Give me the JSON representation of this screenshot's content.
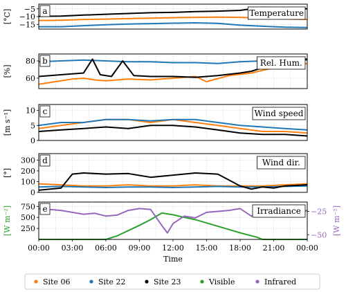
{
  "chart_data": {
    "type": "line",
    "layout": "5 stacked panels sharing a time axis",
    "xlabel": "Time",
    "x_ticks": [
      "00:00",
      "03:00",
      "06:00",
      "09:00",
      "12:00",
      "15:00",
      "18:00",
      "21:00",
      "00:00"
    ],
    "xlim_hours": [
      0,
      24
    ],
    "grid": true,
    "legend_position": "bottom",
    "legend": [
      {
        "name": "Site 06",
        "color": "#ff7f0e"
      },
      {
        "name": "Site 22",
        "color": "#1f77b4"
      },
      {
        "name": "Site 23",
        "color": "#000000"
      },
      {
        "name": "Visible",
        "color": "#2ca02c"
      },
      {
        "name": "Infrared",
        "color": "#9467bd"
      }
    ],
    "panels": [
      {
        "letter": "a",
        "title": "Temperature",
        "ylabel": "[°C]",
        "ylim": [
          -18,
          -2
        ],
        "yticks": [
          -15,
          -10,
          -5
        ],
        "series": [
          {
            "name": "Site 06",
            "color": "#ff7f0e",
            "x": [
              0,
              2,
              4,
              6,
              8,
              10,
              12,
              14,
              16,
              18,
              20,
              22,
              24
            ],
            "y": [
              -12.5,
              -12.3,
              -11.8,
              -11.6,
              -11.3,
              -11,
              -10.7,
              -10.5,
              -10.3,
              -10.5,
              -11,
              -11.5,
              -11.8
            ]
          },
          {
            "name": "Site 22",
            "color": "#1f77b4",
            "x": [
              0,
              2,
              4,
              6,
              8,
              10,
              12,
              14,
              16,
              18,
              20,
              22,
              24
            ],
            "y": [
              -16.5,
              -16.5,
              -15.8,
              -15.2,
              -14.8,
              -14.5,
              -14.2,
              -14,
              -14.3,
              -15.5,
              -16.2,
              -16.8,
              -17
            ]
          },
          {
            "name": "Site 23",
            "color": "#000000",
            "x": [
              0,
              2,
              4,
              6,
              8,
              10,
              12,
              14,
              16,
              18,
              19,
              20,
              22,
              24
            ],
            "y": [
              -9.8,
              -9.7,
              -9,
              -8.5,
              -8,
              -7.5,
              -7.3,
              -6.8,
              -6.5,
              -6,
              -5,
              -4,
              -4.5,
              -5
            ]
          }
        ]
      },
      {
        "letter": "b",
        "title": "Rel. Hum.",
        "ylabel": "[%]",
        "ylim": [
          48,
          88
        ],
        "yticks": [
          60,
          80
        ],
        "series": [
          {
            "name": "Site 06",
            "color": "#ff7f0e",
            "x": [
              0,
              1,
              2,
              3,
              4,
              5,
              6,
              8,
              10,
              12,
              14,
              15,
              17,
              19,
              21,
              22,
              24
            ],
            "y": [
              53,
              55,
              57,
              59,
              60,
              58,
              57,
              59,
              58,
              60,
              62,
              56,
              63,
              66,
              72,
              75,
              77
            ]
          },
          {
            "name": "Site 22",
            "color": "#1f77b4",
            "x": [
              0,
              2,
              4,
              6,
              8,
              10,
              12,
              14,
              16,
              18,
              20,
              22,
              24
            ],
            "y": [
              79,
              80,
              81,
              80,
              79,
              79,
              78,
              78,
              77,
              79,
              80,
              81,
              81
            ]
          },
          {
            "name": "Site 23",
            "color": "#000000",
            "x": [
              0,
              2,
              4,
              4.8,
              5.5,
              6.5,
              7.5,
              8.5,
              10,
              12,
              14,
              16,
              18,
              19,
              20,
              21,
              22,
              24
            ],
            "y": [
              62,
              64,
              66,
              82,
              64,
              62,
              80,
              63,
              62,
              62,
              61,
              63,
              66,
              68,
              72,
              80,
              83,
              82
            ]
          }
        ]
      },
      {
        "letter": "c",
        "title": "Wind speed",
        "ylabel": "[m s⁻¹]",
        "ylim": [
          0,
          12
        ],
        "yticks": [
          0,
          5,
          10
        ],
        "series": [
          {
            "name": "Site 06",
            "color": "#ff7f0e",
            "x": [
              0,
              2,
              4,
              6,
              8,
              10,
              12,
              14,
              16,
              18,
              20,
              22,
              24
            ],
            "y": [
              4,
              5,
              6,
              7,
              7,
              6,
              7,
              6,
              5,
              4,
              3,
              3,
              2.5
            ]
          },
          {
            "name": "Site 22",
            "color": "#1f77b4",
            "x": [
              0,
              2,
              4,
              6,
              8,
              10,
              12,
              14,
              16,
              18,
              20,
              22,
              24
            ],
            "y": [
              5,
              6,
              6,
              7,
              7,
              6.5,
              7,
              7,
              6,
              5,
              4.5,
              4,
              3.5
            ]
          },
          {
            "name": "Site 23",
            "color": "#000000",
            "x": [
              0,
              2,
              4,
              6,
              8,
              10,
              12,
              14,
              16,
              18,
              20,
              22,
              24
            ],
            "y": [
              3,
              3.5,
              4,
              4.5,
              4,
              5,
              5,
              4.5,
              3.5,
              2.5,
              2,
              2,
              1.5
            ]
          }
        ]
      },
      {
        "letter": "d",
        "title": "Wind dir.",
        "ylabel": "[°]",
        "ylim": [
          0,
          360
        ],
        "yticks": [
          0,
          100,
          200,
          300
        ],
        "series": [
          {
            "name": "Site 06",
            "color": "#ff7f0e",
            "x": [
              0,
              2,
              4,
              6,
              8,
              10,
              12,
              14,
              16,
              18,
              20,
              22,
              24
            ],
            "y": [
              80,
              70,
              60,
              60,
              70,
              60,
              60,
              70,
              60,
              60,
              60,
              70,
              80
            ]
          },
          {
            "name": "Site 22",
            "color": "#1f77b4",
            "x": [
              0,
              2,
              4,
              6,
              8,
              10,
              12,
              14,
              16,
              18,
              20,
              22,
              24
            ],
            "y": [
              50,
              55,
              50,
              45,
              50,
              50,
              45,
              50,
              55,
              50,
              50,
              55,
              60
            ]
          },
          {
            "name": "Site 23",
            "color": "#000000",
            "x": [
              0,
              2,
              3,
              4,
              6,
              8,
              10,
              12,
              14,
              16,
              18,
              19,
              20,
              21,
              22,
              24
            ],
            "y": [
              20,
              40,
              170,
              180,
              170,
              175,
              140,
              160,
              180,
              170,
              60,
              30,
              50,
              40,
              60,
              70
            ]
          }
        ]
      },
      {
        "letter": "e",
        "title": "Irradiance",
        "ylabel": "[W m⁻²]",
        "ylim": [
          0,
          850
        ],
        "yticks": [
          250,
          500,
          750
        ],
        "ylabel_right": "[W m⁻²]",
        "ylim_right": [
          -55,
          -15
        ],
        "yticks_right": [
          -50,
          -25
        ],
        "series": [
          {
            "name": "Visible",
            "color": "#2ca02c",
            "axis": "left",
            "x": [
              0,
              6,
              7,
              8,
              9,
              10,
              11,
              12,
              13,
              14,
              16,
              18,
              19.5,
              20,
              24
            ],
            "y": [
              0,
              0,
              80,
              200,
              320,
              450,
              600,
              560,
              500,
              450,
              300,
              150,
              50,
              0,
              0
            ]
          },
          {
            "name": "Infrared",
            "color": "#9467bd",
            "axis": "right",
            "x": [
              0,
              1,
              2,
              3,
              4,
              5,
              6,
              7,
              8,
              9,
              10,
              11,
              11.5,
              12,
              13,
              14,
              15,
              16,
              17,
              18,
              19,
              20,
              21,
              22,
              23,
              24
            ],
            "y": [
              -22,
              -23,
              -24,
              -26,
              -28,
              -27,
              -30,
              -29,
              -24,
              -22,
              -23,
              -40,
              -48,
              -38,
              -30,
              -32,
              -26,
              -25,
              -24,
              -22,
              -30,
              -24,
              -22,
              -26,
              -28,
              -24
            ]
          }
        ]
      }
    ]
  }
}
